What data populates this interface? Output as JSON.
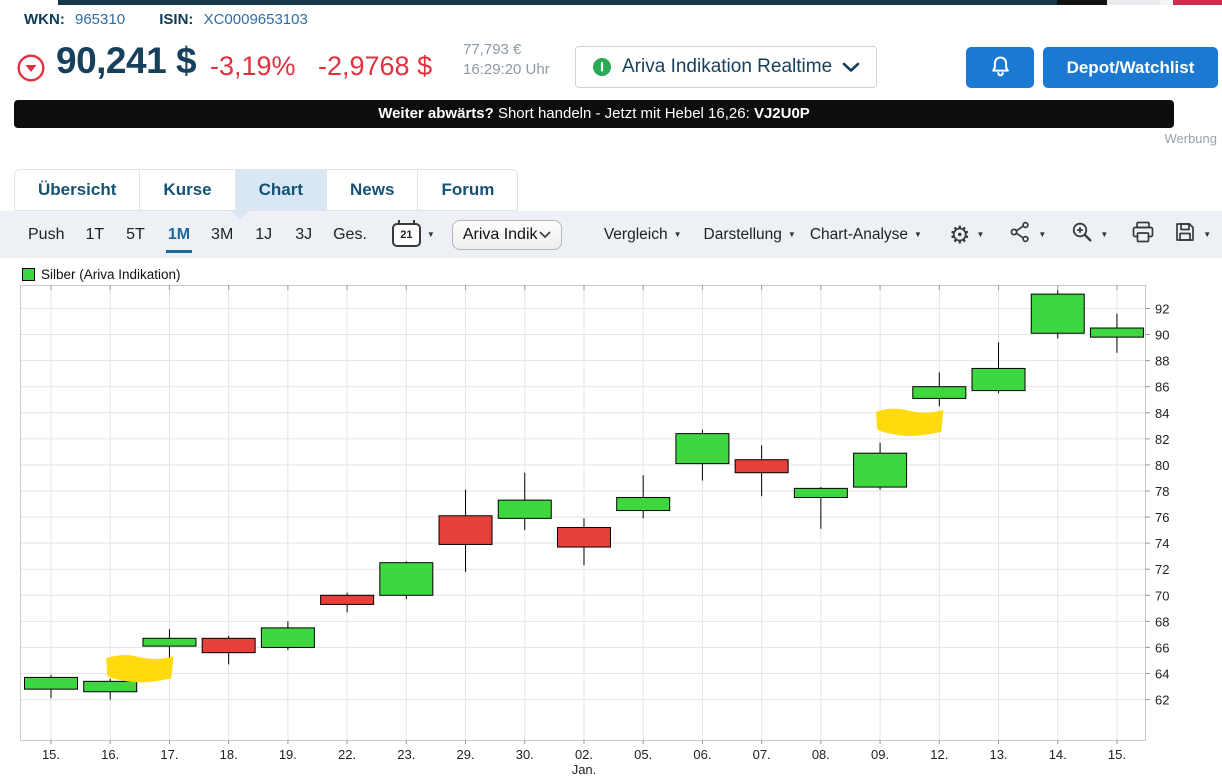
{
  "header": {
    "wkn_label": "WKN:",
    "wkn": "965310",
    "isin_label": "ISIN:",
    "isin": "XC0009653103",
    "price": "90,241 $",
    "change_pct": "-3,19%",
    "change_abs": "-2,9768 $",
    "price_eur": "77,793 €",
    "time": "16:29:20 Uhr",
    "quote_source": "Ariva Indikation Realtime",
    "depot_button": "Depot/Watchlist"
  },
  "ad_banner": {
    "bold_lead": "Weiter abwärts?",
    "text": " Short handeln - Jetzt mit Hebel 16,26: ",
    "code": "VJ2U0P",
    "werbung_label": "Werbung"
  },
  "tabs": {
    "items": [
      {
        "id": "uebersicht",
        "label": "Übersicht",
        "active": false
      },
      {
        "id": "kurse",
        "label": "Kurse",
        "active": false
      },
      {
        "id": "chart",
        "label": "Chart",
        "active": true
      },
      {
        "id": "news",
        "label": "News",
        "active": false
      },
      {
        "id": "forum",
        "label": "Forum",
        "active": false
      }
    ]
  },
  "toolbar": {
    "ranges": [
      {
        "id": "push",
        "label": "Push",
        "active": false
      },
      {
        "id": "1t",
        "label": "1T",
        "active": false
      },
      {
        "id": "5t",
        "label": "5T",
        "active": false
      },
      {
        "id": "1m",
        "label": "1M",
        "active": true
      },
      {
        "id": "3m",
        "label": "3M",
        "active": false
      },
      {
        "id": "1j",
        "label": "1J",
        "active": false
      },
      {
        "id": "3j",
        "label": "3J",
        "active": false
      },
      {
        "id": "ges",
        "label": "Ges.",
        "active": false
      }
    ],
    "calendar_day": "21",
    "instrument_select": "Ariva Indik",
    "menus": [
      {
        "id": "vergleich",
        "label": "Vergleich"
      },
      {
        "id": "darstellung",
        "label": "Darstellung"
      },
      {
        "id": "chart-analyse",
        "label": "Chart-Analyse"
      }
    ]
  },
  "chart_data": {
    "type": "candlestick",
    "legend": "Silber (Ariva Indikation)",
    "ylim": [
      58.9,
      93.8
    ],
    "yticks": [
      62,
      64,
      66,
      68,
      70,
      72,
      74,
      76,
      78,
      80,
      82,
      84,
      86,
      88,
      90,
      92
    ],
    "grid": true,
    "x_sublabel": {
      "index": 9,
      "label": "Jan."
    },
    "colors": {
      "up": "#3fd73f",
      "down": "#e5403a",
      "annotation": "#ffd800",
      "grid": "#e5e5e5",
      "frame": "#c9c9c9"
    },
    "candles": [
      {
        "date": "15.",
        "o": 62.8,
        "h": 63.9,
        "l": 62.1,
        "c": 63.7
      },
      {
        "date": "16.",
        "o": 62.6,
        "h": 63.6,
        "l": 62.0,
        "c": 63.4
      },
      {
        "date": "17.",
        "o": 66.1,
        "h": 67.4,
        "l": 65.1,
        "c": 66.7
      },
      {
        "date": "18.",
        "o": 66.7,
        "h": 66.9,
        "l": 64.7,
        "c": 65.6
      },
      {
        "date": "19.",
        "o": 66.0,
        "h": 68.0,
        "l": 65.8,
        "c": 67.5
      },
      {
        "date": "22.",
        "o": 70.0,
        "h": 70.2,
        "l": 68.7,
        "c": 69.3
      },
      {
        "date": "23.",
        "o": 70.0,
        "h": 72.6,
        "l": 69.7,
        "c": 72.5
      },
      {
        "date": "29.",
        "o": 76.1,
        "h": 78.1,
        "l": 71.8,
        "c": 73.9
      },
      {
        "date": "30.",
        "o": 75.9,
        "h": 79.4,
        "l": 75.0,
        "c": 77.3
      },
      {
        "date": "02.",
        "o": 75.2,
        "h": 75.9,
        "l": 72.3,
        "c": 73.7
      },
      {
        "date": "05.",
        "o": 76.5,
        "h": 79.2,
        "l": 75.9,
        "c": 77.5
      },
      {
        "date": "06.",
        "o": 80.1,
        "h": 82.7,
        "l": 78.8,
        "c": 82.4
      },
      {
        "date": "07.",
        "o": 80.4,
        "h": 81.5,
        "l": 77.6,
        "c": 79.4
      },
      {
        "date": "08.",
        "o": 77.5,
        "h": 78.3,
        "l": 75.1,
        "c": 78.2
      },
      {
        "date": "09.",
        "o": 78.3,
        "h": 81.7,
        "l": 78.1,
        "c": 80.9
      },
      {
        "date": "12.",
        "o": 85.1,
        "h": 87.1,
        "l": 84.5,
        "c": 86.0
      },
      {
        "date": "13.",
        "o": 85.7,
        "h": 89.4,
        "l": 85.5,
        "c": 87.4
      },
      {
        "date": "14.",
        "o": 90.1,
        "h": 93.4,
        "l": 89.7,
        "c": 93.1
      },
      {
        "date": "15.",
        "o": 89.8,
        "h": 91.6,
        "l": 88.6,
        "c": 90.5
      }
    ],
    "annotations": [
      {
        "type": "highlight",
        "from": 1,
        "to": 2,
        "v_top": 65.4,
        "v_bottom": 63.4
      },
      {
        "type": "highlight",
        "from": 14,
        "to": 15,
        "v_top": 84.3,
        "v_bottom": 82.3
      }
    ]
  }
}
